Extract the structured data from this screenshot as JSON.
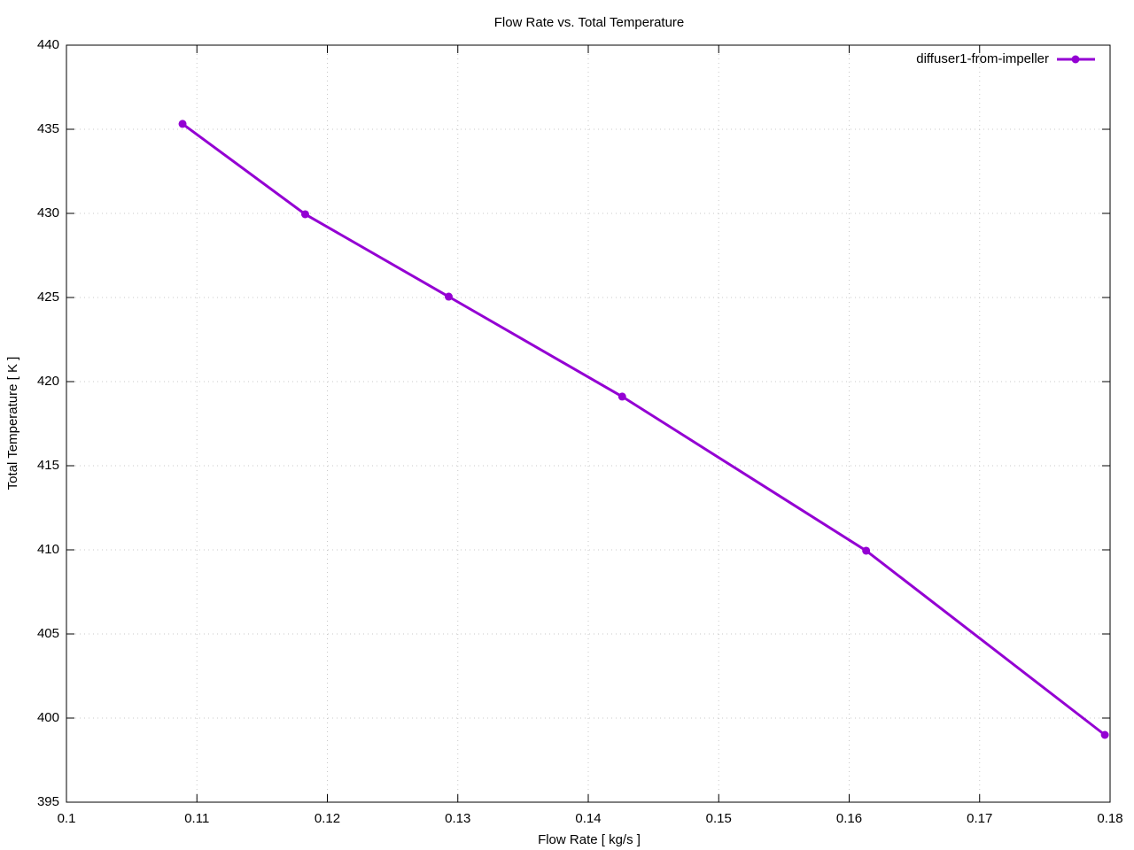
{
  "chart_data": {
    "type": "line",
    "title": "Flow Rate vs. Total Temperature",
    "x_label": "Flow Rate [ kg/s ]",
    "y_label": "Total Temperature [ K ]",
    "x": [
      0.1089,
      0.1183,
      0.1293,
      0.1426,
      0.1613,
      0.1796
    ],
    "series": [
      {
        "name": "diffuser1-from-impeller",
        "color": "#9400d3",
        "values": [
          435.32,
          429.95,
          425.05,
          419.11,
          409.95,
          399.0
        ]
      }
    ],
    "xlim": [
      0.1,
      0.18
    ],
    "ylim": [
      395,
      440
    ],
    "xticks": [
      0.1,
      0.11,
      0.12,
      0.13,
      0.14,
      0.15,
      0.16,
      0.17,
      0.18
    ],
    "yticks": [
      395,
      400,
      405,
      410,
      415,
      420,
      425,
      430,
      435,
      440
    ],
    "grid": true,
    "legend": "top-right"
  }
}
